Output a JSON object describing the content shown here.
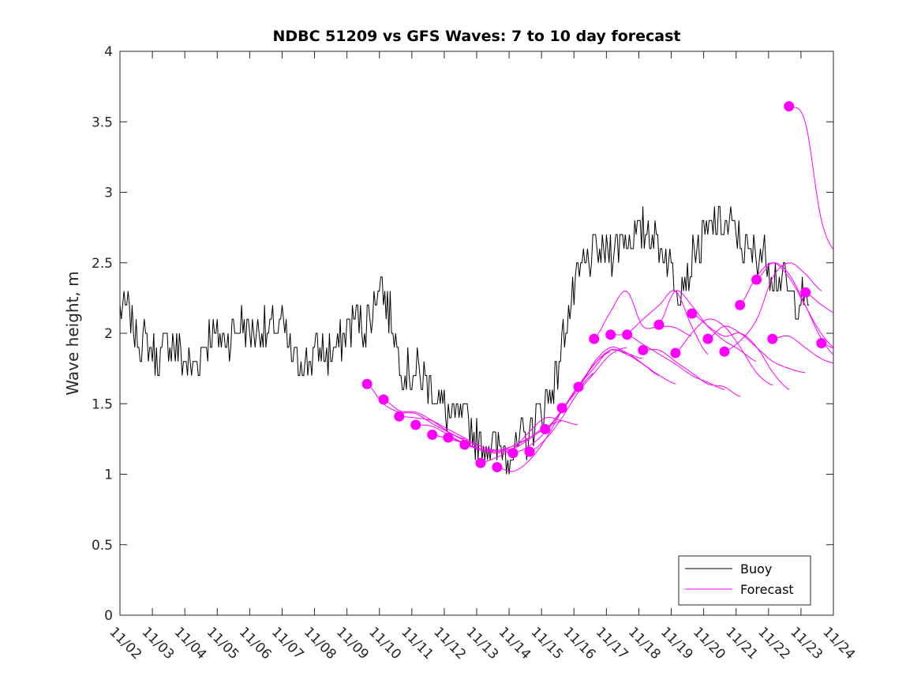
{
  "chart_data": {
    "type": "line",
    "title": "NDBC 51209 vs GFS Waves: 7 to 10 day forecast",
    "xlabel": "",
    "ylabel": "Wave height, m",
    "xlim_days": [
      0,
      22
    ],
    "ylim": [
      0,
      4
    ],
    "x_tick_labels": [
      "11/02",
      "11/03",
      "11/04",
      "11/05",
      "11/06",
      "11/07",
      "11/08",
      "11/09",
      "11/10",
      "11/11",
      "11/12",
      "11/13",
      "11/14",
      "11/15",
      "11/16",
      "11/17",
      "11/18",
      "11/19",
      "11/20",
      "11/21",
      "11/22",
      "11/23",
      "11/24"
    ],
    "y_ticks": [
      0,
      0.5,
      1,
      1.5,
      2,
      2.5,
      3,
      3.5,
      4
    ],
    "y_tick_labels": [
      "0",
      "0.5",
      "1",
      "1.5",
      "2",
      "2.5",
      "3",
      "3.5",
      "4"
    ],
    "grid": false,
    "legend": {
      "placement": "bottom-right",
      "entries": [
        {
          "label": "Buoy",
          "color": "#000000"
        },
        {
          "label": "Forecast",
          "color": "#ff00ff"
        }
      ]
    },
    "buoy": {
      "name": "Buoy",
      "color": "#000000",
      "start_day": 0,
      "step_days": 0.25,
      "values": [
        2.15,
        2.15,
        2.0,
        1.95,
        1.85,
        1.8,
        1.95,
        1.9,
        1.8,
        1.75,
        1.85,
        2.0,
        2.0,
        1.95,
        2.0,
        2.05,
        2.0,
        2.05,
        2.0,
        2.05,
        2.05,
        1.85,
        1.8,
        1.8,
        1.85,
        1.9,
        1.85,
        1.9,
        2.05,
        2.1,
        2.05,
        2.1,
        2.4,
        2.2,
        1.95,
        1.75,
        1.7,
        1.72,
        1.65,
        1.55,
        1.45,
        1.4,
        1.42,
        1.38,
        1.25,
        1.22,
        1.18,
        1.2,
        1.15,
        1.2,
        1.25,
        1.35,
        1.45,
        1.55,
        1.75,
        2.1,
        2.3,
        2.45,
        2.55,
        2.6,
        2.55,
        2.6,
        2.65,
        2.7,
        2.7,
        2.75,
        2.65,
        2.6,
        2.45,
        2.35,
        2.4,
        2.6,
        2.65,
        2.75,
        2.8,
        2.75,
        2.7,
        2.6,
        2.55,
        2.6,
        2.5,
        2.4,
        2.35,
        2.2,
        2.25,
        2.2
      ]
    },
    "forecast": {
      "name": "Forecast",
      "color": "#ff00ff",
      "step_days": 0.5,
      "runs": [
        {
          "start_day": 7.62,
          "values": [
            1.64,
            1.5,
            1.44,
            1.43,
            1.36,
            1.3,
            1.25
          ]
        },
        {
          "start_day": 8.13,
          "values": [
            1.53,
            1.45,
            1.44,
            1.38,
            1.3,
            1.24,
            1.2
          ]
        },
        {
          "start_day": 8.61,
          "values": [
            1.41,
            1.4,
            1.38,
            1.32,
            1.26,
            1.2,
            1.17
          ]
        },
        {
          "start_day": 9.12,
          "values": [
            1.35,
            1.34,
            1.28,
            1.22,
            1.18,
            1.16,
            1.18
          ]
        },
        {
          "start_day": 9.63,
          "values": [
            1.28,
            1.25,
            1.22,
            1.18,
            1.17,
            1.2,
            1.25
          ]
        },
        {
          "start_day": 10.12,
          "values": [
            1.26,
            1.22,
            1.18,
            1.16,
            1.2,
            1.26,
            1.33
          ]
        },
        {
          "start_day": 10.63,
          "values": [
            1.21,
            1.17,
            1.15,
            1.18,
            1.25,
            1.33,
            1.38
          ]
        },
        {
          "start_day": 11.12,
          "values": [
            1.08,
            1.12,
            1.18,
            1.3,
            1.4,
            1.38,
            1.35
          ]
        },
        {
          "start_day": 11.63,
          "values": [
            1.05,
            1.02,
            1.1,
            1.25,
            1.45,
            1.6,
            1.72
          ]
        },
        {
          "start_day": 12.12,
          "values": [
            1.15,
            1.2,
            1.3,
            1.45,
            1.62,
            1.78,
            1.87
          ]
        },
        {
          "start_day": 12.63,
          "values": [
            1.16,
            1.25,
            1.4,
            1.58,
            1.72,
            1.85,
            1.9
          ]
        },
        {
          "start_day": 13.11,
          "values": [
            1.32,
            1.45,
            1.62,
            1.75,
            1.88,
            1.86,
            1.82
          ]
        },
        {
          "start_day": 13.63,
          "values": [
            1.47,
            1.62,
            1.78,
            1.88,
            1.85,
            1.78,
            1.7
          ]
        },
        {
          "start_day": 14.14,
          "values": [
            1.62,
            1.8,
            1.9,
            1.86,
            1.78,
            1.7,
            1.64
          ]
        },
        {
          "start_day": 14.62,
          "values": [
            1.96,
            2.15,
            2.3,
            2.05,
            2.05,
            2.04,
            1.98
          ]
        },
        {
          "start_day": 15.13,
          "values": [
            1.99,
            2.0,
            2.1,
            2.2,
            2.3,
            2.05,
            1.85
          ]
        },
        {
          "start_day": 15.64,
          "values": [
            1.99,
            1.92,
            1.85,
            1.78,
            1.7,
            1.65,
            1.6
          ]
        },
        {
          "start_day": 16.13,
          "values": [
            1.88,
            1.88,
            1.8,
            1.72,
            1.64,
            1.62,
            1.55
          ]
        },
        {
          "start_day": 16.62,
          "values": [
            2.06,
            2.3,
            2.2,
            2.05,
            1.95,
            1.88,
            1.8
          ]
        },
        {
          "start_day": 17.13,
          "values": [
            1.86,
            2.0,
            2.1,
            2.05,
            1.9,
            1.72,
            1.63
          ]
        },
        {
          "start_day": 17.64,
          "values": [
            2.14,
            2.05,
            1.98,
            2.0,
            1.9,
            1.72,
            1.6
          ]
        },
        {
          "start_day": 18.13,
          "values": [
            1.96,
            2.05,
            2.0,
            1.9,
            1.8,
            1.75,
            1.72
          ]
        },
        {
          "start_day": 18.64,
          "values": [
            1.87,
            1.95,
            2.1,
            2.4,
            2.5,
            2.42,
            2.3
          ]
        },
        {
          "start_day": 19.12,
          "values": [
            2.2,
            2.4,
            2.5,
            2.4,
            2.2,
            2.0,
            1.88
          ]
        },
        {
          "start_day": 19.63,
          "values": [
            2.38,
            2.5,
            2.42,
            2.2,
            1.96,
            1.82,
            1.78
          ]
        },
        {
          "start_day": 20.12,
          "values": [
            1.96,
            1.98,
            1.9,
            1.82,
            1.78,
            1.76,
            1.76
          ]
        },
        {
          "start_day": 20.63,
          "values": [
            3.61,
            3.5,
            2.8,
            2.55,
            2.45,
            2.4,
            2.37
          ]
        },
        {
          "start_day": 21.14,
          "values": [
            2.29,
            2.2,
            2.15,
            2.3,
            2.45,
            2.45,
            2.36
          ]
        },
        {
          "start_day": 21.63,
          "values": [
            1.93,
            1.88,
            1.85,
            1.8,
            1.78,
            1.76,
            1.75
          ]
        }
      ]
    }
  }
}
